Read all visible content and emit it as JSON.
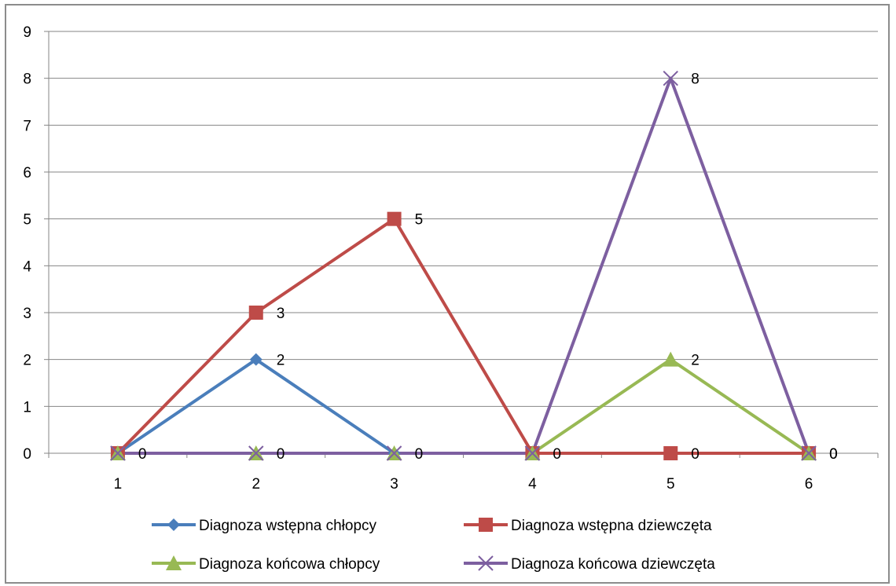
{
  "chart_data": {
    "type": "line",
    "title": "",
    "xlabel": "",
    "ylabel": "",
    "categories": [
      "1",
      "2",
      "3",
      "4",
      "5",
      "6"
    ],
    "ylim": [
      0,
      9
    ],
    "yticks": [
      "0",
      "1",
      "2",
      "3",
      "4",
      "5",
      "6",
      "7",
      "8",
      "9"
    ],
    "grid": true,
    "legend_position": "bottom",
    "series": [
      {
        "name": "Diagnoza wstępna chłopcy",
        "values": [
          0,
          2,
          0,
          0,
          0,
          0
        ],
        "color": "#4a7ebb",
        "marker": "diamond",
        "labels": [
          "",
          "2",
          "",
          "",
          "",
          ""
        ]
      },
      {
        "name": "Diagnoza wstępna dziewczęta",
        "values": [
          0,
          3,
          5,
          0,
          0,
          0
        ],
        "color": "#be4b48",
        "marker": "square",
        "labels": [
          "",
          "3",
          "5",
          "",
          "0",
          "0"
        ]
      },
      {
        "name": "Diagnoza końcowa chłopcy",
        "values": [
          0,
          0,
          0,
          0,
          2,
          0
        ],
        "color": "#98b954",
        "marker": "triangle",
        "labels": [
          "",
          "",
          "",
          "",
          "2",
          ""
        ]
      },
      {
        "name": "Diagnoza końcowa dziewczęta",
        "values": [
          0,
          0,
          0,
          0,
          8,
          0
        ],
        "color": "#7d5fa0",
        "marker": "x",
        "labels": [
          "0",
          "0",
          "0",
          "0",
          "8",
          "0"
        ]
      }
    ]
  }
}
